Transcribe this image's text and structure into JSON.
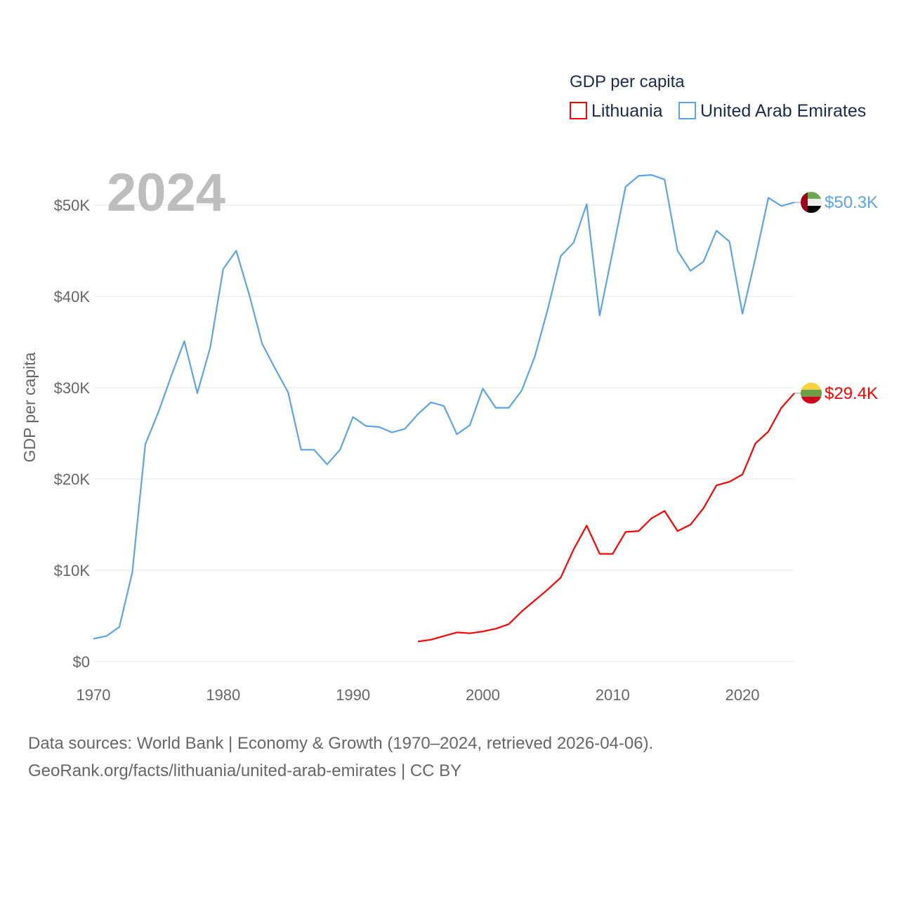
{
  "chart_data": {
    "type": "line",
    "title": "GDP per capita",
    "year_overlay": "2024",
    "xlabel": "",
    "ylabel": "GDP per capita",
    "xlim": [
      1970,
      2024
    ],
    "ylim": [
      0,
      55000
    ],
    "x_ticks": [
      1970,
      1980,
      1990,
      2000,
      2010,
      2020
    ],
    "x_tick_labels": [
      "1970",
      "1980",
      "1990",
      "2000",
      "2010",
      "2020"
    ],
    "y_ticks": [
      0,
      10000,
      20000,
      30000,
      40000,
      50000
    ],
    "y_tick_labels": [
      "$0",
      "$10K",
      "$20K",
      "$30K",
      "$40K",
      "$50K"
    ],
    "grid": true,
    "legend_position": "top-right",
    "series": [
      {
        "name": "Lithuania",
        "color": "#ff0000",
        "end_label": "$29.4K",
        "flag": "lithuania-flag",
        "x_start": 1995,
        "values": [
          2200,
          2400,
          2800,
          3200,
          3100,
          3300,
          3600,
          4100,
          5500,
          6700,
          7900,
          9200,
          12300,
          14900,
          11800,
          11800,
          14200,
          14300,
          15700,
          16500,
          14300,
          15000,
          16800,
          19300,
          19700,
          20500,
          23900,
          25200,
          27800,
          29400
        ]
      },
      {
        "name": "United Arab Emirates",
        "color": "#5ba4e8",
        "end_label": "$50.3K",
        "flag": "uae-flag",
        "x_start": 1970,
        "values": [
          2500,
          2800,
          3800,
          9800,
          23800,
          27300,
          31300,
          35100,
          29400,
          34400,
          43000,
          45000,
          40200,
          34800,
          32100,
          29500,
          23200,
          23200,
          21600,
          23200,
          26800,
          25800,
          25700,
          25100,
          25500,
          27100,
          28400,
          28000,
          24900,
          25900,
          29900,
          27800,
          27800,
          29700,
          33400,
          38600,
          44400,
          45900,
          50100,
          37900,
          44900,
          52000,
          53200,
          53300,
          52800,
          45000,
          42800,
          43800,
          47200,
          46000,
          38100,
          44200,
          50800,
          49900,
          50300
        ]
      }
    ]
  },
  "footer": {
    "line1": "Data sources: World Bank | Economy & Growth (1970–2024, retrieved 2026-04-06).",
    "line2": "GeoRank.org/facts/lithuania/united-arab-emirates | CC BY"
  }
}
